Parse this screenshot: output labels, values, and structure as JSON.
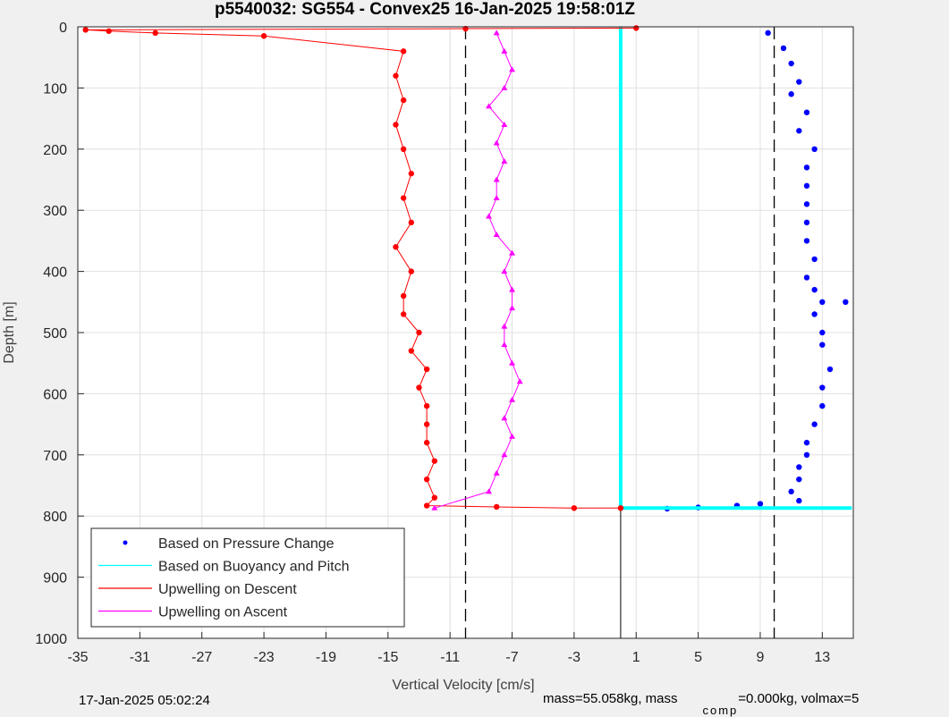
{
  "chart_data": {
    "type": "scatter",
    "title": "p5540032: SG554 - Convex25 16-Jan-2025 19:58:01Z",
    "xlabel": "Vertical Velocity [cm/s]",
    "ylabel": "Depth [m]",
    "xlim": [
      -35,
      15
    ],
    "ylim": [
      0,
      1000
    ],
    "y_reversed": true,
    "xticks": [
      -35,
      -31,
      -27,
      -23,
      -19,
      -15,
      -11,
      -7,
      -3,
      1,
      5,
      9,
      13
    ],
    "yticks": [
      0,
      100,
      200,
      300,
      400,
      500,
      600,
      700,
      800,
      900,
      1000
    ],
    "grid": true,
    "legend_position": "bottom-left",
    "series": [
      {
        "name": "Based on Pressure Change",
        "color": "#0000ff",
        "marker": "dot",
        "x": [
          9.5,
          10.5,
          11.0,
          11.5,
          11.0,
          12.0,
          11.5,
          12.5,
          12.0,
          12.0,
          12.0,
          12.0,
          12.0,
          12.5,
          12.0,
          12.5,
          13.0,
          12.5,
          13.0,
          13.0,
          14.5,
          13.5,
          13.0,
          13.0,
          12.5,
          12.0,
          12.0,
          11.5,
          11.5,
          11.0,
          11.5,
          9.0,
          7.5,
          5.0,
          3.0
        ],
        "y": [
          10,
          35,
          60,
          90,
          110,
          140,
          170,
          200,
          230,
          260,
          290,
          320,
          350,
          380,
          410,
          430,
          450,
          470,
          500,
          520,
          450,
          560,
          590,
          620,
          650,
          680,
          700,
          720,
          740,
          760,
          775,
          780,
          783,
          786,
          788
        ]
      },
      {
        "name": "Based on Buoyancy and Pitch",
        "color": "#00ffff",
        "marker": "line",
        "x": [
          0,
          0,
          0,
          14.9
        ],
        "y": [
          0,
          400,
          787,
          787
        ]
      },
      {
        "name": "Upwelling on Descent",
        "color": "#ff0000",
        "marker": "dot-line",
        "x": [
          1.0,
          -10.0,
          -34.5,
          -33.0,
          -30.0,
          -23.0,
          -14.0,
          -14.5,
          -14.0,
          -14.5,
          -14.0,
          -13.5,
          -14.0,
          -13.5,
          -14.5,
          -13.5,
          -14.0,
          -14.0,
          -13.0,
          -13.5,
          -12.5,
          -13.0,
          -12.5,
          -12.5,
          -12.5,
          -12.0,
          -12.5,
          -12.0,
          -12.5,
          -8.0,
          -3.0,
          0.0
        ],
        "y": [
          2,
          3,
          5,
          7,
          10,
          15,
          40,
          80,
          120,
          160,
          200,
          240,
          280,
          320,
          360,
          400,
          440,
          470,
          500,
          530,
          560,
          590,
          620,
          650,
          680,
          710,
          740,
          770,
          783,
          785,
          787,
          787
        ]
      },
      {
        "name": "Upwelling on Ascent",
        "color": "#ff00ff",
        "marker": "triangle-line",
        "x": [
          -8.0,
          -7.5,
          -7.0,
          -7.5,
          -8.5,
          -7.5,
          -8.0,
          -7.5,
          -8.0,
          -8.0,
          -8.5,
          -8.0,
          -7.0,
          -7.5,
          -7.0,
          -7.0,
          -7.5,
          -7.5,
          -7.0,
          -6.5,
          -7.0,
          -7.5,
          -7.0,
          -7.5,
          -8.0,
          -8.5,
          -12.0
        ],
        "y": [
          10,
          40,
          70,
          100,
          130,
          160,
          190,
          220,
          250,
          280,
          310,
          340,
          370,
          400,
          430,
          460,
          490,
          520,
          550,
          580,
          610,
          640,
          670,
          700,
          730,
          760,
          787
        ]
      }
    ],
    "reference_lines_x": [
      -10.0,
      9.9
    ]
  },
  "footer": {
    "timestamp": "17-Jan-2025 05:02:24",
    "mass_text": "mass=55.058kg, mass",
    "comp_sub": "comp",
    "rest_text": "=0.000kg, volmax=5"
  }
}
